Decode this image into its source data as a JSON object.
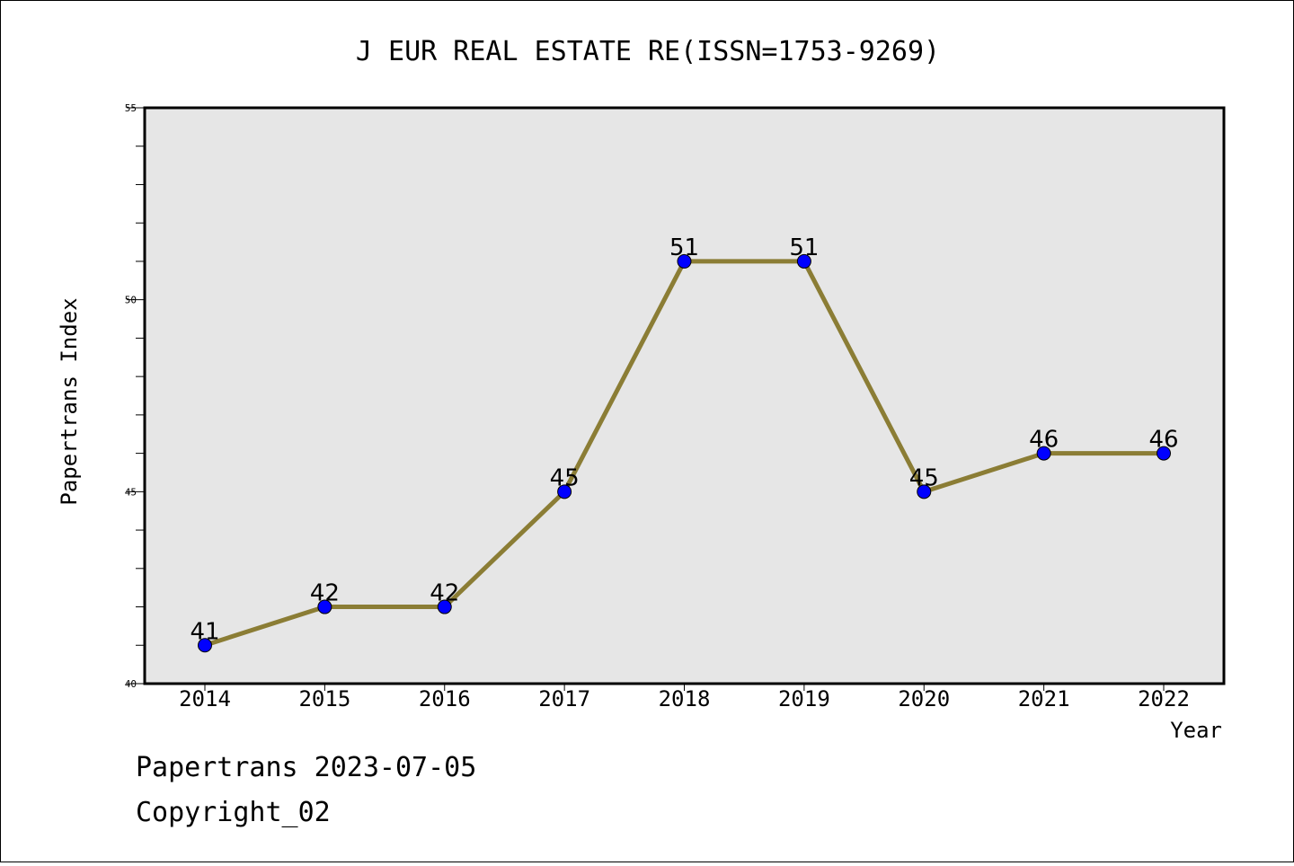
{
  "chart_data": {
    "type": "line",
    "title": "J EUR REAL ESTATE RE(ISSN=1753-9269)",
    "xlabel": "Year",
    "ylabel": "Papertrans Index",
    "categories": [
      "2014",
      "2015",
      "2016",
      "2017",
      "2018",
      "2019",
      "2020",
      "2021",
      "2022"
    ],
    "series": [
      {
        "values": [
          41,
          42,
          42,
          45,
          51,
          51,
          45,
          46,
          46
        ]
      }
    ],
    "data_labels": [
      "41",
      "42",
      "42",
      "45",
      "51",
      "51",
      "45",
      "46",
      "46"
    ],
    "y_ticks": [
      "40",
      "45",
      "50",
      "55"
    ],
    "ylim": [
      40,
      55
    ],
    "grid": false,
    "legend": "none",
    "colors": {
      "line": "#8B7D35",
      "marker": "#0000FF",
      "plot_bg": "#E6E6E6"
    }
  },
  "footer": {
    "line1": "Papertrans 2023-07-05",
    "line2": "Copyright_02"
  }
}
